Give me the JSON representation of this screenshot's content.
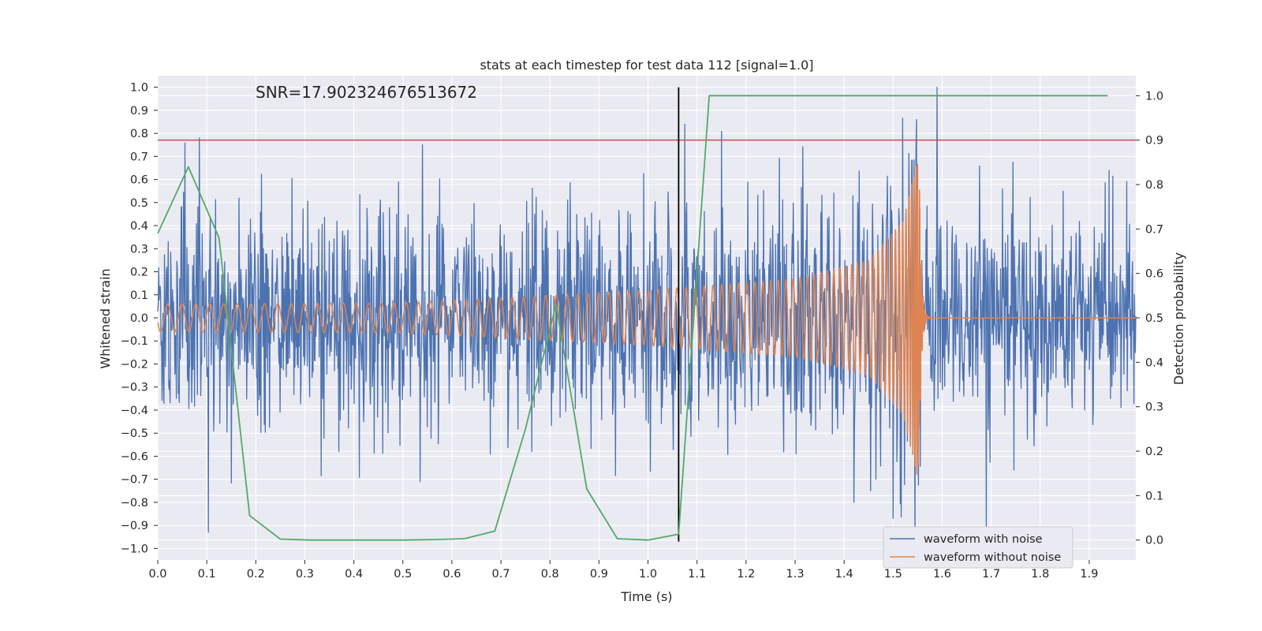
{
  "chart_data": {
    "type": "line",
    "title": "stats at each timestep for test data 112 [signal=1.0]",
    "xlabel": "Time (s)",
    "ylabel": "Whitened strain",
    "y2label": "Detection probability",
    "annotation": "SNR=17.902324676513672",
    "xlim": [
      0.0,
      1.995
    ],
    "ylim": [
      -1.05,
      1.05
    ],
    "y2lim": [
      -0.045,
      1.045
    ],
    "x_ticks": [
      0.0,
      0.1,
      0.2,
      0.3,
      0.4,
      0.5,
      0.6,
      0.7,
      0.8,
      0.9,
      1.0,
      1.1,
      1.2,
      1.3,
      1.4,
      1.5,
      1.6,
      1.7,
      1.8,
      1.9
    ],
    "x_tick_labels": [
      "0.0",
      "0.1",
      "0.2",
      "0.3",
      "0.4",
      "0.5",
      "0.6",
      "0.7",
      "0.8",
      "0.9",
      "1.0",
      "1.1",
      "1.2",
      "1.3",
      "1.4",
      "1.5",
      "1.6",
      "1.7",
      "1.8",
      "1.9"
    ],
    "y_ticks": [
      1.0,
      0.9,
      0.8,
      0.7,
      0.6,
      0.5,
      0.4,
      0.3,
      0.2,
      0.1,
      0.0,
      -0.1,
      -0.2,
      -0.3,
      -0.4,
      -0.5,
      -0.6,
      -0.7,
      -0.8,
      -0.9,
      -1.0
    ],
    "y_tick_labels": [
      "1.0",
      "0.9",
      "0.8",
      "0.7",
      "0.6",
      "0.5",
      "0.4",
      "0.3",
      "0.2",
      "0.1",
      "0.0",
      "−0.1",
      "−0.2",
      "−0.3",
      "−0.4",
      "−0.5",
      "−0.6",
      "−0.7",
      "−0.8",
      "−0.9",
      "−1.0"
    ],
    "y2_ticks": [
      1.0,
      0.9,
      0.8,
      0.7,
      0.6,
      0.5,
      0.4,
      0.3,
      0.2,
      0.1,
      0.0
    ],
    "y2_tick_labels": [
      "1.0",
      "0.9",
      "0.8",
      "0.7",
      "0.6",
      "0.5",
      "0.4",
      "0.3",
      "0.2",
      "0.1",
      "0.0"
    ],
    "threshold_line": {
      "axis": "y2",
      "value": 0.9,
      "color": "#c44e52"
    },
    "vertical_marker": {
      "x": 1.0625,
      "color": "#000000"
    },
    "series": [
      {
        "name": "waveform with noise",
        "axis": "y",
        "color": "#4c72b0",
        "in_legend": true,
        "note": "noisy whitened strain; std ~0.25, peaks near 1.59 s (1.0) and 1.075 s (0.84)",
        "highlights": [
          {
            "x": 0.085,
            "y": 0.78
          },
          {
            "x": 0.103,
            "y": -0.93
          },
          {
            "x": 0.54,
            "y": 0.75
          },
          {
            "x": 0.535,
            "y": -0.71
          },
          {
            "x": 1.075,
            "y": 0.84
          },
          {
            "x": 1.087,
            "y": -0.37
          },
          {
            "x": 1.42,
            "y": -0.8
          },
          {
            "x": 1.5,
            "y": -0.87
          },
          {
            "x": 1.548,
            "y": 0.86
          },
          {
            "x": 1.59,
            "y": 1.0
          },
          {
            "x": 1.69,
            "y": -0.95
          },
          {
            "x": 1.94,
            "y": 0.64
          }
        ]
      },
      {
        "name": "waveform without noise",
        "axis": "y",
        "color": "#dd8452",
        "in_legend": true,
        "note": "chirp signal, amplitude grows to ~0.7 near merger at 1.553 s then ringdown to 0",
        "amplitude_envelope": [
          {
            "x": 0.0,
            "y": 0.06
          },
          {
            "x": 0.5,
            "y": 0.065
          },
          {
            "x": 1.0,
            "y": 0.12
          },
          {
            "x": 1.3,
            "y": 0.17
          },
          {
            "x": 1.45,
            "y": 0.25
          },
          {
            "x": 1.52,
            "y": 0.42
          },
          {
            "x": 1.553,
            "y": 0.72
          },
          {
            "x": 1.57,
            "y": 0.04
          },
          {
            "x": 1.995,
            "y": 0.0
          }
        ]
      },
      {
        "name": "Detection probability",
        "axis": "y2",
        "color": "#55a868",
        "in_legend": false,
        "x": [
          0.0,
          0.0625,
          0.125,
          0.1875,
          0.25,
          0.3125,
          0.375,
          0.4375,
          0.5,
          0.5625,
          0.625,
          0.6875,
          0.75,
          0.8125,
          0.875,
          0.9375,
          1.0,
          1.0625,
          1.125,
          1.1875,
          1.25,
          1.3125,
          1.375,
          1.4375,
          1.5,
          1.5625,
          1.625,
          1.6875,
          1.75,
          1.8125,
          1.875,
          1.9375
        ],
        "values": [
          0.69,
          0.84,
          0.68,
          0.055,
          0.002,
          0.0,
          0.0,
          0.0,
          0.0,
          0.001,
          0.003,
          0.02,
          0.25,
          0.53,
          0.115,
          0.003,
          0.0,
          0.013,
          1.0,
          1.0,
          1.0,
          1.0,
          1.0,
          1.0,
          1.0,
          1.0,
          1.0,
          1.0,
          1.0,
          1.0,
          1.0,
          1.0
        ]
      }
    ],
    "legend_position": "lower-right",
    "grid": true
  }
}
